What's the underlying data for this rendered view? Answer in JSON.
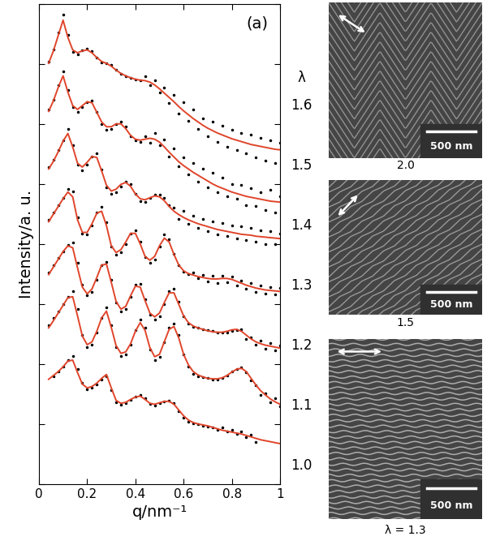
{
  "chart_data": {
    "type": "line",
    "x_label": "q/nm⁻¹",
    "y_label": "Intensity/a. u.",
    "annotations": [
      "(a)",
      "λ"
    ],
    "xlim": [
      0,
      1
    ],
    "xticks": [
      0,
      0.2,
      0.4,
      0.6,
      0.8,
      1
    ],
    "ylim": [
      0,
      100
    ],
    "yticks": [
      0,
      12.5,
      25,
      37.5,
      50,
      62.5,
      75,
      87.5,
      100
    ],
    "tick_labels": "x",
    "grid": false,
    "x": [
      0.04,
      0.06,
      0.08,
      0.1,
      0.12,
      0.14,
      0.16,
      0.18,
      0.2,
      0.22,
      0.24,
      0.26,
      0.28,
      0.3,
      0.32,
      0.34,
      0.36,
      0.38,
      0.4,
      0.42,
      0.44,
      0.46,
      0.48,
      0.5,
      0.52,
      0.54,
      0.56,
      0.58,
      0.6,
      0.62,
      0.64,
      0.66,
      0.68,
      0.7,
      0.72,
      0.74,
      0.76,
      0.78,
      0.8,
      0.82,
      0.84,
      0.86,
      0.88,
      0.9,
      0.92,
      0.94,
      0.96,
      0.98,
      1.0
    ],
    "series": [
      {
        "name": "1.6",
        "type": "scatter",
        "color": "#000000",
        "marker": "point",
        "line_style": "none",
        "values": [
          88,
          90.5,
          94,
          97.8,
          93.5,
          90,
          89.5,
          90.3,
          90.7,
          90.2,
          88.8,
          87.8,
          87.6,
          87.2,
          86.3,
          85.5,
          85,
          84.6,
          84.3,
          84.1,
          84.9,
          83.0,
          84.1,
          81.6,
          82.5,
          79.4,
          81.0,
          77.2,
          79.5,
          75.6,
          78.0,
          73.9,
          76.2,
          72.5,
          75.4,
          71.2,
          74.6,
          70.3,
          73.8,
          69.6,
          73.1,
          68.9,
          72.8,
          68.0,
          72.0,
          67.4,
          71.6,
          66.8,
          71.1
        ]
      },
      {
        "type": "line",
        "color": "#e0452b",
        "line_style": "solid",
        "values": [
          87.6,
          90.2,
          93.4,
          96.6,
          93.0,
          90.4,
          89.8,
          90.2,
          90.4,
          89.8,
          88.8,
          88.0,
          87.6,
          87.0,
          86.2,
          85.5,
          85.0,
          84.6,
          84.3,
          84.1,
          84.0,
          83.7,
          83.1,
          82.3,
          81.4,
          80.5,
          79.6,
          78.6,
          77.7,
          76.9,
          76.1,
          75.4,
          74.7,
          74.1,
          73.6,
          73.1,
          72.7,
          72.3,
          71.9,
          71.6,
          71.3,
          71.0,
          70.7,
          70.5,
          70.3,
          70.1,
          69.9,
          69.7,
          69.6
        ]
      },
      {
        "name": "1.5",
        "type": "scatter",
        "color": "#000000",
        "marker": "point",
        "line_style": "none",
        "values": [
          78,
          80,
          83,
          86,
          82,
          78.5,
          77.5,
          78.5,
          79.5,
          79.8,
          77.5,
          75,
          73.8,
          74,
          75,
          75.5,
          74.5,
          72.5,
          71.5,
          71.3,
          72.4,
          71.0,
          73.1,
          70.5,
          71.8,
          68.2,
          69.9,
          66.1,
          68.0,
          64.4,
          66.9,
          63.0,
          65.6,
          61.8,
          64.9,
          60.7,
          63.8,
          59.9,
          62.5,
          59.4,
          62.2,
          58.0,
          61.6,
          57.9,
          60.8,
          57.1,
          61.3,
          56.6,
          59.9
        ]
      },
      {
        "type": "line",
        "color": "#e0452b",
        "line_style": "solid",
        "values": [
          77.6,
          79.8,
          82.6,
          85.0,
          81.6,
          78.8,
          78.0,
          78.8,
          79.6,
          79.4,
          77.4,
          75.4,
          74.4,
          74.4,
          75.0,
          75.0,
          74.0,
          72.6,
          71.8,
          71.6,
          71.8,
          72.0,
          71.8,
          71.2,
          70.2,
          69.1,
          68.1,
          67.1,
          66.3,
          65.6,
          64.9,
          64.3,
          63.7,
          63.1,
          62.5,
          62.0,
          61.6,
          61.2,
          60.8,
          60.5,
          60.2,
          59.9,
          59.7,
          59.5,
          59.3,
          59.1,
          58.9,
          58.8,
          58.7
        ]
      },
      {
        "name": "1.4",
        "type": "scatter",
        "color": "#000000",
        "marker": "point",
        "line_style": "none",
        "values": [
          66,
          67.5,
          69.5,
          71.5,
          73.9,
          70.5,
          66.5,
          65.4,
          66.5,
          68.2,
          68.8,
          65.5,
          61.8,
          60.4,
          60.8,
          62,
          62.9,
          62.5,
          60.5,
          58.9,
          58.7,
          59.5,
          60.2,
          60.3,
          59.5,
          58,
          57.6,
          55.2,
          56.8,
          54.1,
          55.9,
          53.3,
          55.2,
          52.6,
          54.7,
          52.0,
          54.3,
          51.7,
          53.9,
          51.2,
          53.6,
          50.8,
          53.3,
          50.5,
          52.9,
          50.0,
          52.6,
          49.9,
          52.2
        ]
      },
      {
        "type": "line",
        "color": "#e0452b",
        "line_style": "solid",
        "values": [
          65.6,
          67.2,
          69.2,
          71.4,
          73.0,
          70.2,
          66.8,
          66.0,
          67.0,
          68.2,
          68.0,
          65.2,
          62.2,
          61.0,
          61.4,
          62.4,
          62.8,
          62.0,
          60.4,
          59.4,
          59.2,
          59.6,
          60.0,
          59.8,
          59.0,
          57.8,
          56.8,
          56.1,
          55.5,
          55.0,
          54.6,
          54.2,
          53.9,
          53.6,
          53.3,
          53.0,
          52.8,
          52.6,
          52.4,
          52.2,
          52.0,
          51.9,
          51.8,
          51.6,
          51.5,
          51.4,
          51.3,
          51.2,
          51.1
        ]
      },
      {
        "name": "1.3",
        "type": "scatter",
        "color": "#000000",
        "marker": "point",
        "line_style": "none",
        "values": [
          55,
          56.5,
          58,
          59.5,
          61.5,
          61,
          55.5,
          52.2,
          52,
          53.8,
          56.5,
          57.8,
          54.5,
          49.5,
          47.7,
          48.2,
          50,
          52.2,
          52.8,
          50.5,
          47.2,
          46,
          46.8,
          49.5,
          51.9,
          51,
          48,
          45.5,
          44.2,
          43.7,
          44.1,
          42.8,
          43.6,
          42.1,
          43.4,
          41.9,
          43.3,
          42.0,
          43.2,
          41.4,
          42.3,
          40.6,
          41.8,
          40.0,
          41.4,
          39.6,
          41.0,
          39.5,
          40.8
        ]
      },
      {
        "type": "line",
        "color": "#e0452b",
        "line_style": "solid",
        "values": [
          54.6,
          56.2,
          57.8,
          59.4,
          60.8,
          59.8,
          55.0,
          52.4,
          52.4,
          54.2,
          56.4,
          56.8,
          53.8,
          49.6,
          48.2,
          48.8,
          50.4,
          52.2,
          52.2,
          50.0,
          47.4,
          46.6,
          47.4,
          49.6,
          51.2,
          50.4,
          47.8,
          45.6,
          44.4,
          43.8,
          43.5,
          43.2,
          43.0,
          42.8,
          42.7,
          42.7,
          42.8,
          42.8,
          42.6,
          42.2,
          41.8,
          41.4,
          41.1,
          40.8,
          40.6,
          40.4,
          40.3,
          40.2,
          40.1
        ]
      },
      {
        "name": "1.2",
        "type": "scatter",
        "color": "#000000",
        "marker": "point",
        "line_style": "none",
        "values": [
          44,
          45.5,
          47,
          48.5,
          49.8,
          50.3,
          46,
          41.5,
          39.3,
          40,
          42.5,
          45.5,
          46.3,
          42.5,
          37.8,
          35.9,
          36.5,
          39,
          41.5,
          41.6,
          38.5,
          35.2,
          34.2,
          35,
          37.5,
          40.2,
          40.6,
          38,
          35,
          33.4,
          32.8,
          32.5,
          32.3,
          32.1,
          31.8,
          31.6,
          31.5,
          31.5,
          31.8,
          32,
          32.3,
          30.2,
          30.6,
          29.0,
          29.8,
          28.2,
          29.3,
          27.8,
          28.9
        ]
      },
      {
        "type": "line",
        "color": "#e0452b",
        "line_style": "solid",
        "values": [
          43.6,
          45.2,
          46.8,
          48.4,
          49.6,
          49.2,
          45.0,
          41.0,
          39.6,
          40.6,
          43.0,
          45.6,
          45.8,
          42.0,
          38.0,
          36.4,
          37.0,
          39.2,
          41.2,
          41.0,
          38.2,
          35.6,
          34.8,
          35.6,
          37.8,
          39.8,
          39.8,
          37.4,
          35.0,
          33.6,
          32.9,
          32.5,
          32.2,
          31.9,
          31.7,
          31.6,
          31.6,
          31.8,
          32.1,
          32.2,
          31.8,
          31.0,
          30.2,
          29.6,
          29.2,
          28.9,
          28.7,
          28.5,
          28.3
        ]
      },
      {
        "name": "1.1",
        "type": "scatter",
        "color": "#000000",
        "marker": "point",
        "line_style": "none",
        "values": [
          33,
          34.5,
          36,
          37.5,
          39,
          40.1,
          36.5,
          31,
          28.5,
          29,
          31.5,
          34.5,
          36.8,
          33,
          28.5,
          26.6,
          27,
          29,
          32,
          34.2,
          32.5,
          28,
          25.8,
          26.5,
          29.5,
          32.5,
          33.4,
          31,
          27,
          24.5,
          23,
          22.4,
          22.2,
          22,
          21.8,
          21.8,
          22,
          22.6,
          23.4,
          24,
          24.2,
          23.2,
          21.5,
          20.6,
          18.5,
          18.9,
          17.0,
          17.8,
          16.2
        ]
      },
      {
        "type": "line",
        "color": "#e0452b",
        "line_style": "solid",
        "values": [
          32.5,
          34.0,
          35.6,
          37.2,
          38.8,
          39.0,
          35.0,
          30.8,
          29.0,
          29.6,
          31.8,
          34.6,
          36.0,
          32.6,
          28.8,
          27.2,
          27.5,
          29.2,
          31.8,
          33.6,
          32.0,
          28.4,
          26.5,
          27.0,
          29.6,
          32.2,
          32.8,
          30.4,
          27.0,
          24.8,
          23.4,
          22.7,
          22.3,
          22.0,
          21.9,
          21.9,
          22.1,
          22.6,
          23.3,
          23.9,
          24.1,
          23.4,
          22.0,
          20.6,
          19.4,
          18.5,
          17.7,
          17.1,
          16.6
        ]
      },
      {
        "name": "1.0",
        "type": "scatter",
        "color": "#000000",
        "marker": "point",
        "line_style": "none",
        "values": [
          null,
          22.5,
          23.5,
          24.5,
          25.8,
          26.6,
          24.0,
          21.0,
          19.8,
          20.0,
          20.8,
          21.8,
          22.4,
          19.5,
          17.0,
          16.5,
          16.9,
          17.6,
          18.2,
          18.5,
          17.8,
          16.6,
          16.4,
          16.8,
          17.2,
          17.3,
          16.8,
          15.2,
          13.8,
          13.0,
          12.6,
          12.4,
          12.2,
          12.0,
          11.7,
          11.2,
          11.8,
          10.9,
          11.3,
          10.4,
          10.9,
          9.7,
          10.2,
          8.8,
          null,
          null,
          null,
          null,
          null
        ]
      },
      {
        "type": "line",
        "color": "#e0452b",
        "line_style": "solid",
        "values": [
          21.8,
          22.6,
          23.4,
          24.4,
          25.6,
          25.8,
          23.2,
          20.8,
          20.0,
          20.3,
          21.0,
          22.0,
          22.8,
          20.0,
          17.4,
          16.8,
          17.0,
          17.6,
          18.1,
          18.3,
          17.6,
          16.8,
          16.6,
          16.9,
          17.2,
          17.2,
          16.6,
          15.4,
          14.2,
          13.3,
          12.8,
          12.5,
          12.3,
          12.1,
          11.8,
          11.5,
          11.2,
          11.0,
          10.8,
          10.6,
          10.4,
          10.1,
          9.8,
          9.5,
          9.2,
          9.0,
          8.8,
          8.6,
          8.4
        ]
      }
    ]
  },
  "micrographs": [
    {
      "caption": "2.0",
      "scale_bar": "500 nm"
    },
    {
      "caption": "1.5",
      "scale_bar": "500 nm"
    },
    {
      "caption": "λ = 1.3",
      "scale_bar": "500 nm"
    }
  ]
}
